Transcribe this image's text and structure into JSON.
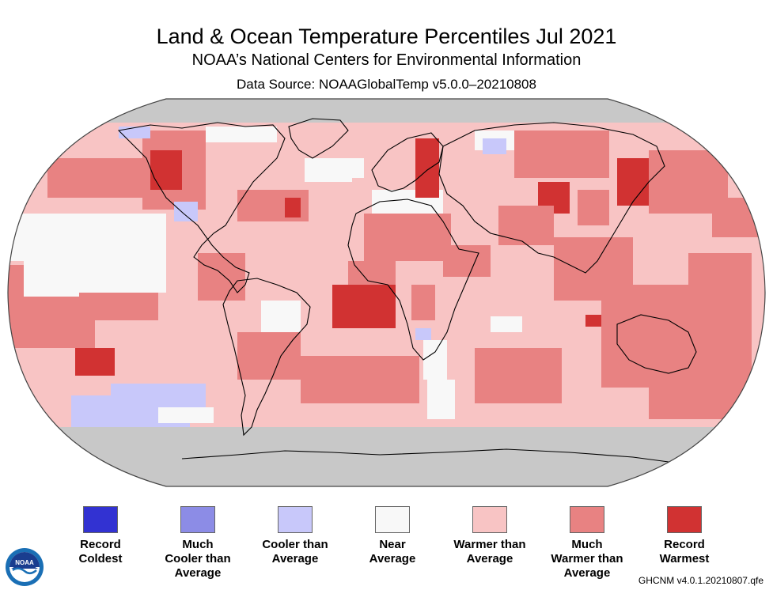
{
  "header": {
    "title": "Land & Ocean Temperature Percentiles Jul 2021",
    "subtitle": "NOAA’s National Centers for Environmental Information",
    "data_source": "Data Source: NOAAGlobalTemp v5.0.0–20210808"
  },
  "colors": {
    "record_coldest": "#3232d2",
    "much_cooler": "#8c8ce6",
    "cooler": "#c8c8fa",
    "near": "#f8f8f8",
    "warmer": "#f8c4c4",
    "much_warmer": "#e88282",
    "record_warmest": "#d13232",
    "no_data": "#c8c8c8",
    "coastline": "#000000"
  },
  "legend": [
    {
      "line1": "Record",
      "line2": "Coldest",
      "line3": "",
      "color": "#3232d2"
    },
    {
      "line1": "Much",
      "line2": "Cooler than",
      "line3": "Average",
      "color": "#8c8ce6"
    },
    {
      "line1": "Cooler than",
      "line2": "Average",
      "line3": "",
      "color": "#c8c8fa"
    },
    {
      "line1": "Near",
      "line2": "Average",
      "line3": "",
      "color": "#f8f8f8"
    },
    {
      "line1": "Warmer than",
      "line2": "Average",
      "line3": "",
      "color": "#f8c4c4"
    },
    {
      "line1": "Much",
      "line2": "Warmer than",
      "line3": "Average",
      "color": "#e88282"
    },
    {
      "line1": "Record",
      "line2": "Warmest",
      "line3": "",
      "color": "#d13232"
    }
  ],
  "footer": {
    "version": "GHCNM v4.0.1.20210807.qfe",
    "logo_text": "NOAA"
  },
  "map": {
    "projection": "Robinson",
    "month": "Jul 2021"
  }
}
